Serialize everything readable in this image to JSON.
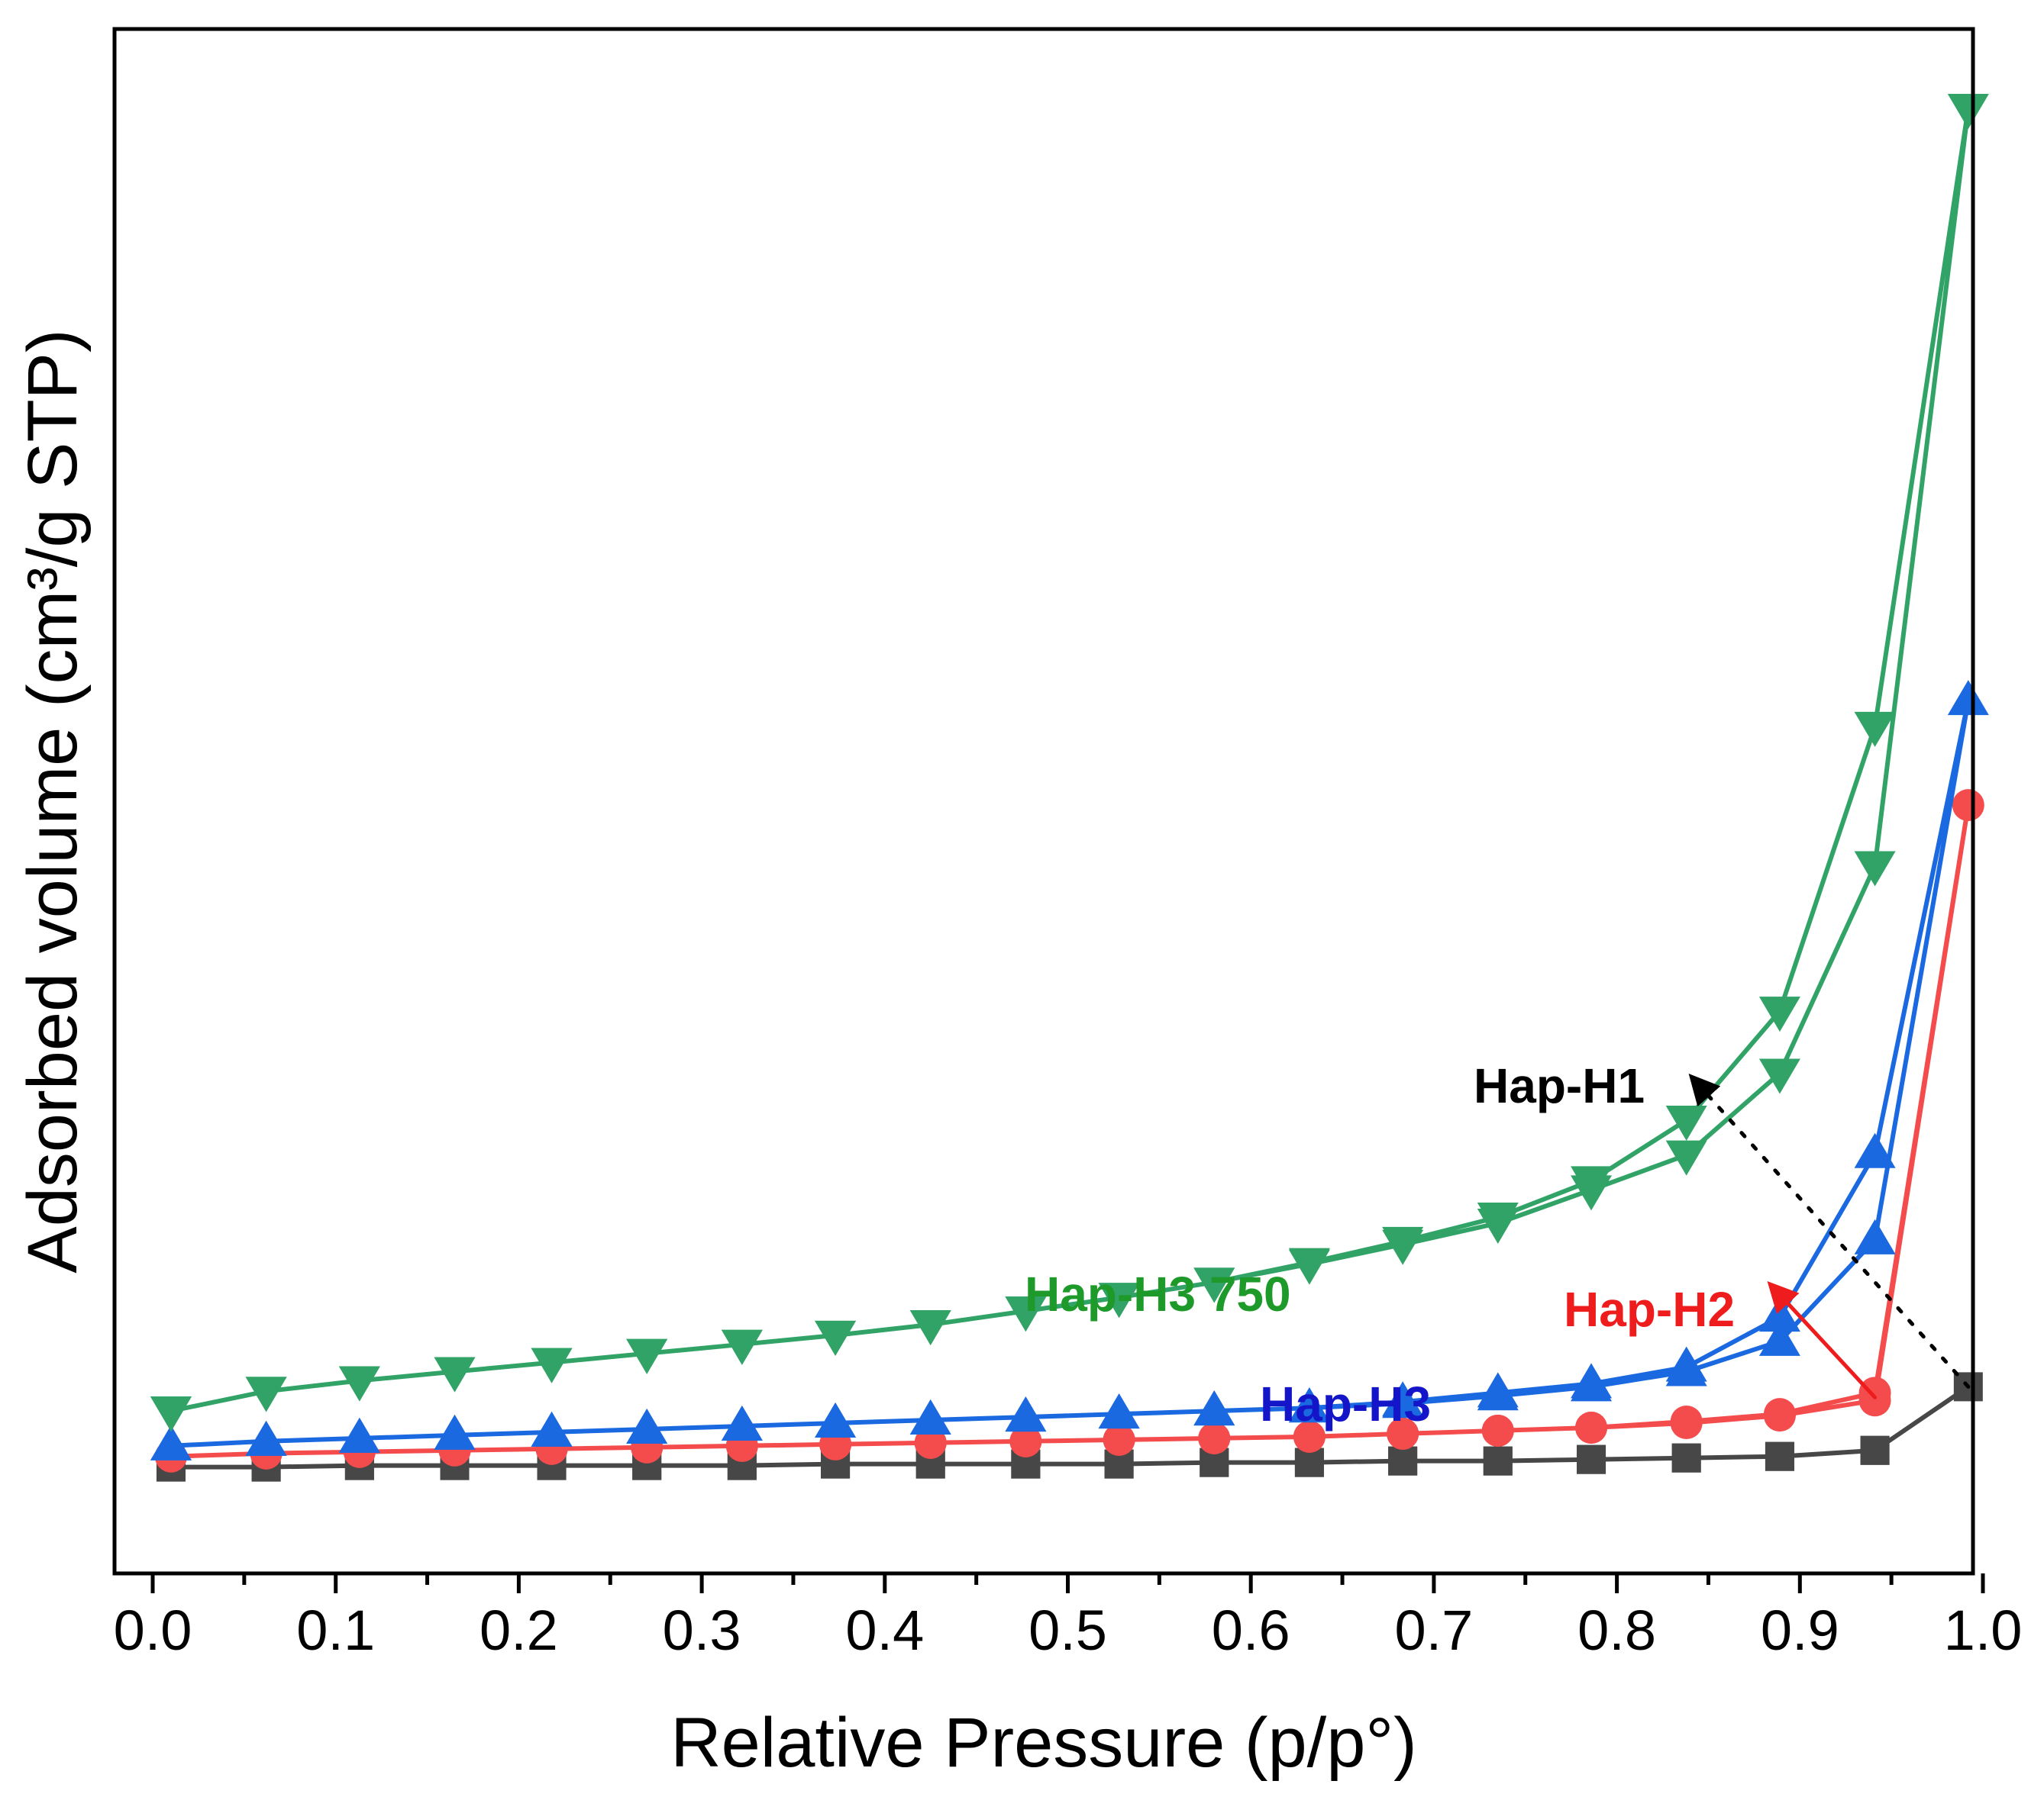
{
  "chart_data": {
    "type": "line",
    "title": "",
    "xlabel": "Relative Pressure (p/p°)",
    "ylabel": "Adsorbed volume (cm³/g STP)",
    "xlim": [
      -0.02,
      1.02
    ],
    "ylim": [
      0,
      100
    ],
    "x_ticks": [
      "0.0",
      "0.1",
      "0.2",
      "0.3",
      "0.4",
      "0.5",
      "0.6",
      "0.7",
      "0.8",
      "0.9",
      "1.0"
    ],
    "y_ticks": [],
    "series": [
      {
        "name": "Hap-H1",
        "color": "#474747",
        "marker": "square",
        "x": [
          0.01,
          0.062,
          0.113,
          0.165,
          0.218,
          0.27,
          0.322,
          0.373,
          0.425,
          0.477,
          0.528,
          0.58,
          0.632,
          0.683,
          0.735,
          0.786,
          0.838,
          0.889,
          0.941,
          0.992,
          0.941,
          0.889,
          0.838,
          0.786,
          0.735,
          0.683,
          0.632,
          0.58,
          0.528,
          0.477,
          0.425,
          0.373,
          0.322,
          0.27,
          0.218,
          0.165,
          0.113,
          0.062,
          0.01
        ],
        "y": [
          3.9,
          3.9,
          4.0,
          4.0,
          4.0,
          4.0,
          4.0,
          4.1,
          4.1,
          4.1,
          4.1,
          4.2,
          4.2,
          4.3,
          4.3,
          4.4,
          4.5,
          4.6,
          5.0,
          9.2,
          5.0,
          4.6,
          4.5,
          4.4,
          4.3,
          4.3,
          4.2,
          4.2,
          4.1,
          4.1,
          4.1,
          4.1,
          4.0,
          4.0,
          4.0,
          4.0,
          4.0,
          3.9,
          3.9
        ]
      },
      {
        "name": "Hap-H2",
        "color": "#f44c4c",
        "marker": "circle",
        "x": [
          0.01,
          0.062,
          0.113,
          0.165,
          0.218,
          0.27,
          0.322,
          0.373,
          0.425,
          0.477,
          0.528,
          0.58,
          0.632,
          0.683,
          0.735,
          0.786,
          0.838,
          0.889,
          0.941,
          0.992,
          0.941,
          0.889,
          0.838,
          0.786,
          0.735,
          0.683,
          0.632,
          0.58,
          0.528,
          0.477,
          0.425,
          0.373,
          0.322,
          0.27,
          0.218,
          0.165,
          0.113,
          0.062,
          0.01
        ],
        "y": [
          4.6,
          4.8,
          4.9,
          5.0,
          5.1,
          5.2,
          5.3,
          5.4,
          5.5,
          5.6,
          5.7,
          5.8,
          5.9,
          6.1,
          6.3,
          6.5,
          6.8,
          7.3,
          8.3,
          47.6,
          8.8,
          7.4,
          6.9,
          6.5,
          6.3,
          6.1,
          5.9,
          5.8,
          5.7,
          5.6,
          5.5,
          5.4,
          5.3,
          5.2,
          5.1,
          5.0,
          4.9,
          4.8,
          4.6
        ]
      },
      {
        "name": "Hap-H3",
        "color": "#1a69e0",
        "marker": "triangle-up",
        "x": [
          0.01,
          0.062,
          0.113,
          0.165,
          0.218,
          0.27,
          0.322,
          0.373,
          0.425,
          0.477,
          0.528,
          0.58,
          0.632,
          0.683,
          0.735,
          0.786,
          0.838,
          0.889,
          0.941,
          0.992,
          0.941,
          0.889,
          0.838,
          0.786,
          0.735,
          0.683,
          0.632,
          0.58,
          0.528,
          0.477,
          0.425,
          0.373,
          0.322,
          0.27,
          0.218,
          0.165,
          0.113,
          0.062,
          0.01
        ],
        "y": [
          5.3,
          5.6,
          5.8,
          6.0,
          6.2,
          6.4,
          6.6,
          6.8,
          7.0,
          7.2,
          7.4,
          7.6,
          7.8,
          8.1,
          8.6,
          9.2,
          10.2,
          12.2,
          18.9,
          54.5,
          24.6,
          13.8,
          10.5,
          9.4,
          8.8,
          8.2,
          7.8,
          7.6,
          7.4,
          7.2,
          7.0,
          6.8,
          6.6,
          6.4,
          6.2,
          6.0,
          5.8,
          5.6,
          5.3
        ]
      },
      {
        "name": "Hap-H3 750",
        "color": "#31a367",
        "marker": "triangle-down",
        "x": [
          0.01,
          0.062,
          0.113,
          0.165,
          0.218,
          0.27,
          0.322,
          0.373,
          0.425,
          0.477,
          0.528,
          0.58,
          0.632,
          0.683,
          0.735,
          0.786,
          0.838,
          0.889,
          0.941,
          0.992,
          0.941,
          0.889,
          0.838,
          0.786,
          0.735,
          0.683,
          0.632,
          0.58,
          0.528,
          0.477,
          0.425,
          0.373,
          0.322,
          0.27,
          0.218,
          0.165,
          0.113,
          0.062,
          0.01
        ],
        "y": [
          7.6,
          8.9,
          9.6,
          10.2,
          10.8,
          11.4,
          12.0,
          12.6,
          13.3,
          14.2,
          15.1,
          16.1,
          17.3,
          18.6,
          20.0,
          22.2,
          24.5,
          29.9,
          43.6,
          93.6,
          52.8,
          34.0,
          26.8,
          22.8,
          20.4,
          18.8,
          17.4,
          16.1,
          15.1,
          14.2,
          13.3,
          12.6,
          12.0,
          11.4,
          10.8,
          10.2,
          9.6,
          8.9,
          7.6
        ]
      }
    ],
    "annotations": [
      {
        "text": "Hap-H1",
        "color": "#000000",
        "arrow_from": [
          0.992,
          9.2
        ],
        "arrow_to": [
          0.842,
          29.5
        ],
        "arrow_style": "dotted"
      },
      {
        "text": "Hap-H2",
        "color": "#ee1c1c",
        "arrow_from": [
          0.941,
          8.5
        ],
        "arrow_to": [
          0.885,
          15.8
        ],
        "arrow_style": "solid"
      },
      {
        "text": "Hap-H3",
        "color": "#1414c8"
      },
      {
        "text": "Hap-H3 750",
        "color": "#1e9a2a"
      }
    ],
    "grid": false,
    "legend": "none"
  }
}
